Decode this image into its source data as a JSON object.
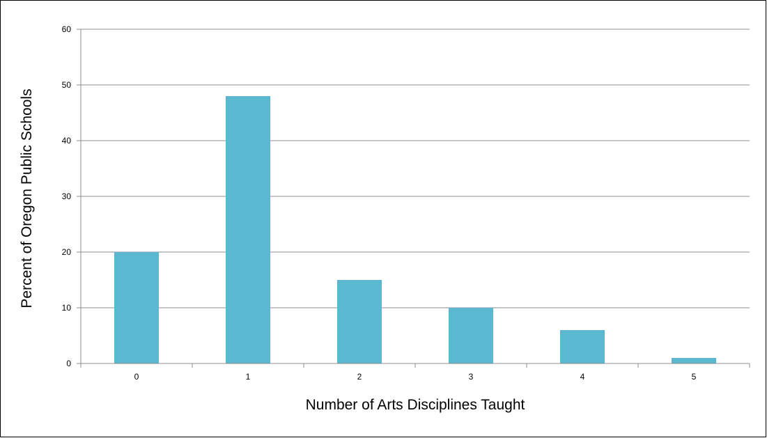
{
  "chart_data": {
    "type": "bar",
    "categories": [
      "0",
      "1",
      "2",
      "3",
      "4",
      "5"
    ],
    "values": [
      20,
      48,
      15,
      10,
      6,
      1
    ],
    "title": "",
    "xlabel": "Number of Arts Disciplines Taught",
    "ylabel": "Percent of Oregon Public Schools",
    "ylim": [
      0,
      60
    ],
    "yticks": [
      0,
      10,
      20,
      30,
      40,
      50,
      60
    ],
    "grid": true,
    "legend": "none",
    "colors": {
      "bar": "#5ab8d1",
      "grid": "#8c8c8c",
      "axis": "#8c8c8c",
      "text": "#000000"
    }
  }
}
